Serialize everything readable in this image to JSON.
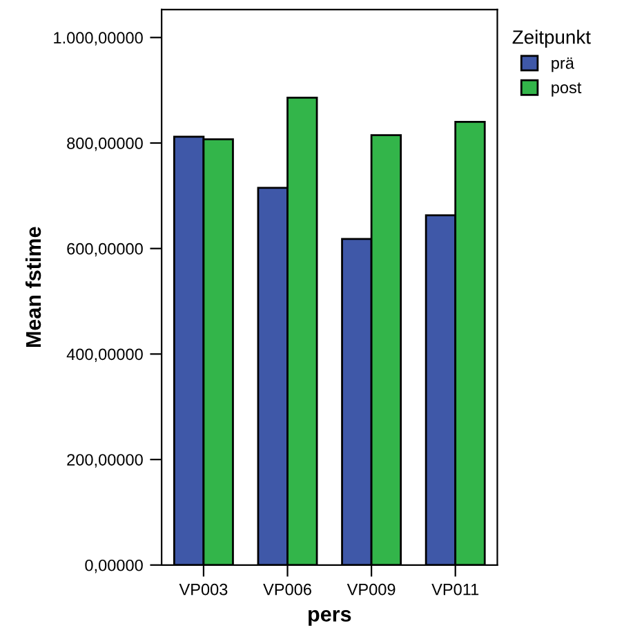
{
  "chart_data": {
    "type": "bar",
    "xlabel": "pers",
    "ylabel": "Mean fstime",
    "legend_title": "Zeitpunkt",
    "categories": [
      "VP003",
      "VP006",
      "VP009",
      "VP011"
    ],
    "series": [
      {
        "name": "prä",
        "color": "#3f58a8",
        "values": [
          812,
          715,
          618,
          663
        ]
      },
      {
        "name": "post",
        "color": "#33b54a",
        "values": [
          807,
          886,
          815,
          840
        ]
      }
    ],
    "ylim": [
      0,
      1053
    ],
    "yticks": [
      {
        "value": 0,
        "label": "0,00000"
      },
      {
        "value": 200,
        "label": "200,00000"
      },
      {
        "value": 400,
        "label": "400,00000"
      },
      {
        "value": 600,
        "label": "600,00000"
      },
      {
        "value": 800,
        "label": "800,00000"
      },
      {
        "value": 1000,
        "label": "1.000,00000"
      }
    ],
    "grid": false,
    "legend": "top right"
  }
}
